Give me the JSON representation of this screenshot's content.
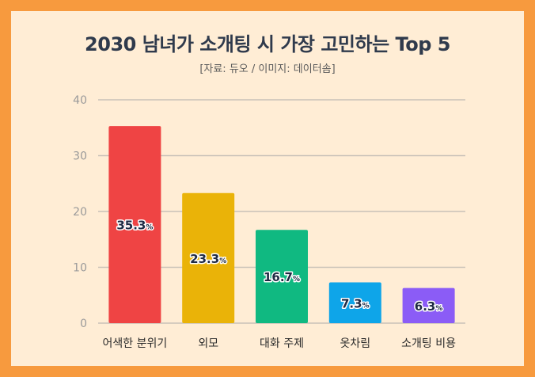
{
  "chart_data": {
    "type": "bar",
    "title": "2030 남녀가 소개팅 시 가장 고민하는 Top 5",
    "subtitle": "[자료: 듀오 / 이미지: 데이터솜]",
    "categories": [
      "어색한 분위기",
      "외모",
      "대화 주제",
      "옷차림",
      "소개팅 비용"
    ],
    "values": [
      35.3,
      23.3,
      16.7,
      7.3,
      6.3
    ],
    "data_labels": [
      "35.3",
      "23.3",
      "16.7",
      "7.3",
      "6.3"
    ],
    "value_unit": "%",
    "ylim": [
      0,
      40
    ],
    "yticks": [
      "0",
      "10",
      "20",
      "30",
      "40"
    ],
    "grid": true,
    "colors": [
      "#ef4444",
      "#eab308",
      "#10b981",
      "#0ea5e9",
      "#8b5cf6"
    ]
  }
}
